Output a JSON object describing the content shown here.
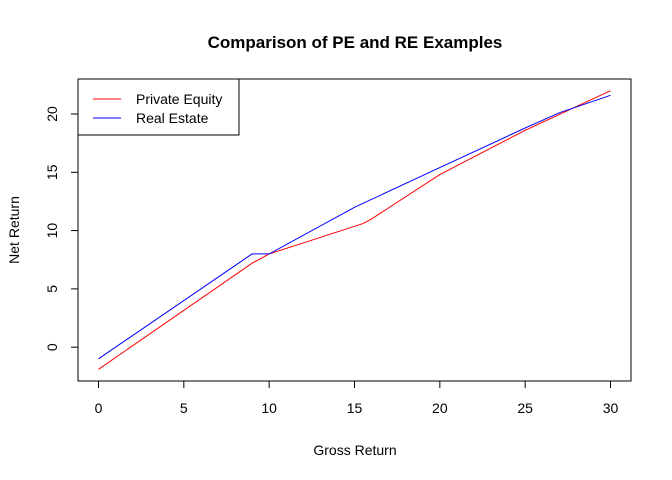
{
  "chart_data": {
    "type": "line",
    "title": "Comparison of PE and RE Examples",
    "xlabel": "Gross Return",
    "ylabel": "Net Return",
    "xlim": [
      -1.2,
      31.2
    ],
    "ylim": [
      -2.9,
      23.0
    ],
    "x_ticks": [
      0,
      5,
      10,
      15,
      20,
      25,
      30
    ],
    "y_ticks": [
      0,
      5,
      10,
      15,
      20
    ],
    "legend_position": "top-left",
    "grid": false,
    "series": [
      {
        "name": "Private Equity",
        "color": "#ff0000",
        "x": [
          0,
          9,
          10,
          15.5,
          16,
          20,
          25,
          30
        ],
        "y": [
          -1.9,
          7.2,
          8.0,
          10.6,
          11.0,
          14.8,
          18.6,
          22.0
        ]
      },
      {
        "name": "Real Estate",
        "color": "#0000ff",
        "x": [
          0,
          9,
          10,
          15,
          20,
          25,
          27,
          30
        ],
        "y": [
          -1.0,
          8.0,
          8.0,
          12.0,
          15.4,
          18.8,
          20.1,
          21.6
        ]
      }
    ]
  }
}
